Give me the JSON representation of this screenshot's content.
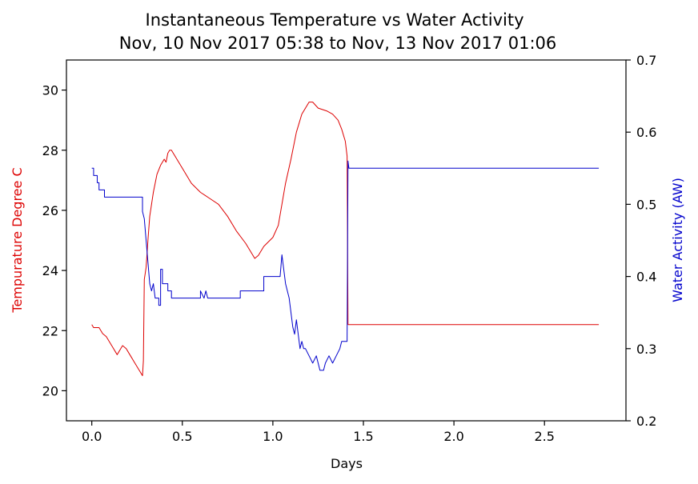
{
  "chart_data": {
    "type": "line",
    "title": "Instantaneous Temperature vs Water Activity",
    "subtitle": "Nov, 10 Nov 2017 05:38 to Nov, 13 Nov 2017 01:06",
    "xlabel": "Days",
    "ylabel_left": "Tempurature Degree C",
    "ylabel_right": "Water Activity (AW)",
    "xlim": [
      -0.14,
      2.95
    ],
    "ylim_left": [
      19,
      31
    ],
    "ylim_right": [
      0.2,
      0.7
    ],
    "x_ticks": [
      "0.0",
      "0.5",
      "1.0",
      "1.5",
      "2.0",
      "2.5"
    ],
    "y_left_ticks": [
      "20",
      "22",
      "24",
      "26",
      "28",
      "30"
    ],
    "y_right_ticks": [
      "0.2",
      "0.3",
      "0.4",
      "0.5",
      "0.6",
      "0.7"
    ],
    "grid": false,
    "colors": {
      "temperature": "#dd0000",
      "water_activity": "#0000cc"
    },
    "series": [
      {
        "axis": "left",
        "points": [
          [
            0.0,
            22.2
          ],
          [
            0.01,
            22.1
          ],
          [
            0.04,
            22.1
          ],
          [
            0.05,
            22.0
          ],
          [
            0.06,
            21.9
          ],
          [
            0.08,
            21.8
          ],
          [
            0.1,
            21.6
          ],
          [
            0.12,
            21.4
          ],
          [
            0.13,
            21.3
          ],
          [
            0.14,
            21.2
          ],
          [
            0.15,
            21.3
          ],
          [
            0.16,
            21.4
          ],
          [
            0.17,
            21.5
          ],
          [
            0.19,
            21.4
          ],
          [
            0.2,
            21.3
          ],
          [
            0.21,
            21.2
          ],
          [
            0.22,
            21.1
          ],
          [
            0.23,
            21.0
          ],
          [
            0.24,
            20.9
          ],
          [
            0.25,
            20.8
          ],
          [
            0.26,
            20.7
          ],
          [
            0.27,
            20.6
          ],
          [
            0.28,
            20.5
          ],
          [
            0.285,
            21.0
          ],
          [
            0.29,
            23.7
          ],
          [
            0.3,
            24.1
          ],
          [
            0.31,
            25.0
          ],
          [
            0.32,
            25.8
          ],
          [
            0.34,
            26.6
          ],
          [
            0.36,
            27.2
          ],
          [
            0.38,
            27.5
          ],
          [
            0.4,
            27.7
          ],
          [
            0.41,
            27.6
          ],
          [
            0.42,
            27.9
          ],
          [
            0.43,
            28.0
          ],
          [
            0.44,
            28.0
          ],
          [
            0.46,
            27.8
          ],
          [
            0.5,
            27.4
          ],
          [
            0.55,
            26.9
          ],
          [
            0.6,
            26.6
          ],
          [
            0.65,
            26.4
          ],
          [
            0.7,
            26.2
          ],
          [
            0.75,
            25.8
          ],
          [
            0.8,
            25.3
          ],
          [
            0.85,
            24.9
          ],
          [
            0.88,
            24.6
          ],
          [
            0.9,
            24.4
          ],
          [
            0.92,
            24.5
          ],
          [
            0.95,
            24.8
          ],
          [
            1.0,
            25.1
          ],
          [
            1.03,
            25.5
          ],
          [
            1.05,
            26.2
          ],
          [
            1.07,
            26.9
          ],
          [
            1.1,
            27.7
          ],
          [
            1.13,
            28.6
          ],
          [
            1.16,
            29.2
          ],
          [
            1.2,
            29.6
          ],
          [
            1.22,
            29.6
          ],
          [
            1.25,
            29.4
          ],
          [
            1.3,
            29.3
          ],
          [
            1.33,
            29.2
          ],
          [
            1.36,
            29.0
          ],
          [
            1.38,
            28.7
          ],
          [
            1.4,
            28.3
          ],
          [
            1.41,
            27.8
          ],
          [
            1.415,
            22.2
          ],
          [
            2.8,
            22.2
          ]
        ]
      },
      {
        "axis": "right",
        "points": [
          [
            0.0,
            0.55
          ],
          [
            0.01,
            0.55
          ],
          [
            0.01,
            0.54
          ],
          [
            0.03,
            0.54
          ],
          [
            0.03,
            0.53
          ],
          [
            0.04,
            0.53
          ],
          [
            0.04,
            0.52
          ],
          [
            0.07,
            0.52
          ],
          [
            0.07,
            0.51
          ],
          [
            0.28,
            0.51
          ],
          [
            0.28,
            0.49
          ],
          [
            0.29,
            0.48
          ],
          [
            0.3,
            0.45
          ],
          [
            0.31,
            0.42
          ],
          [
            0.32,
            0.39
          ],
          [
            0.33,
            0.38
          ],
          [
            0.34,
            0.39
          ],
          [
            0.35,
            0.37
          ],
          [
            0.37,
            0.37
          ],
          [
            0.37,
            0.36
          ],
          [
            0.38,
            0.36
          ],
          [
            0.38,
            0.41
          ],
          [
            0.39,
            0.41
          ],
          [
            0.39,
            0.39
          ],
          [
            0.42,
            0.39
          ],
          [
            0.42,
            0.38
          ],
          [
            0.44,
            0.38
          ],
          [
            0.44,
            0.37
          ],
          [
            0.6,
            0.37
          ],
          [
            0.6,
            0.38
          ],
          [
            0.62,
            0.37
          ],
          [
            0.63,
            0.38
          ],
          [
            0.64,
            0.37
          ],
          [
            0.82,
            0.37
          ],
          [
            0.82,
            0.38
          ],
          [
            0.95,
            0.38
          ],
          [
            0.95,
            0.4
          ],
          [
            1.04,
            0.4
          ],
          [
            1.05,
            0.43
          ],
          [
            1.06,
            0.41
          ],
          [
            1.07,
            0.39
          ],
          [
            1.09,
            0.37
          ],
          [
            1.1,
            0.35
          ],
          [
            1.11,
            0.33
          ],
          [
            1.12,
            0.32
          ],
          [
            1.13,
            0.34
          ],
          [
            1.14,
            0.32
          ],
          [
            1.15,
            0.3
          ],
          [
            1.16,
            0.31
          ],
          [
            1.17,
            0.3
          ],
          [
            1.18,
            0.3
          ],
          [
            1.2,
            0.29
          ],
          [
            1.22,
            0.28
          ],
          [
            1.24,
            0.29
          ],
          [
            1.25,
            0.28
          ],
          [
            1.26,
            0.27
          ],
          [
            1.28,
            0.27
          ],
          [
            1.29,
            0.28
          ],
          [
            1.31,
            0.29
          ],
          [
            1.33,
            0.28
          ],
          [
            1.35,
            0.29
          ],
          [
            1.37,
            0.3
          ],
          [
            1.38,
            0.31
          ],
          [
            1.41,
            0.31
          ],
          [
            1.415,
            0.56
          ],
          [
            1.42,
            0.55
          ],
          [
            2.8,
            0.55
          ]
        ]
      }
    ]
  }
}
